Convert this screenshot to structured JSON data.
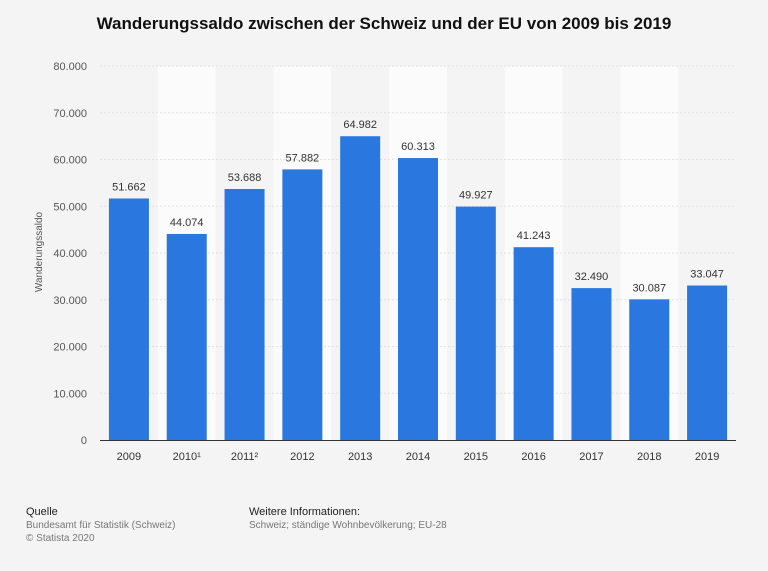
{
  "chart_data": {
    "type": "bar",
    "title": "Wanderungssaldo zwischen der Schweiz und der EU von 2009 bis 2019",
    "xlabel": "",
    "ylabel": "Wanderungssaldo",
    "categories": [
      "2009",
      "2010¹",
      "2011²",
      "2012",
      "2013",
      "2014",
      "2015",
      "2016",
      "2017",
      "2018",
      "2019"
    ],
    "values": [
      51662,
      44074,
      53688,
      57882,
      64982,
      60313,
      49927,
      41243,
      32490,
      30087,
      33047
    ],
    "value_labels": [
      "51.662",
      "44.074",
      "53.688",
      "57.882",
      "64.982",
      "60.313",
      "49.927",
      "41.243",
      "32.490",
      "30.087",
      "33.047"
    ],
    "ylim": [
      0,
      80000
    ],
    "yticks": [
      0,
      10000,
      20000,
      30000,
      40000,
      50000,
      60000,
      70000,
      80000
    ],
    "ytick_labels": [
      "0",
      "10.000",
      "20.000",
      "30.000",
      "40.000",
      "50.000",
      "60.000",
      "70.000",
      "80.000"
    ],
    "grid": true,
    "bar_color": "#2a78df"
  },
  "footer": {
    "source_heading": "Quelle",
    "source_text": "Bundesamt für Statistik (Schweiz)",
    "copyright": "© Statista 2020",
    "info_heading": "Weitere Informationen:",
    "info_text": "Schweiz; ständige Wohnbevölkerung; EU-28"
  }
}
